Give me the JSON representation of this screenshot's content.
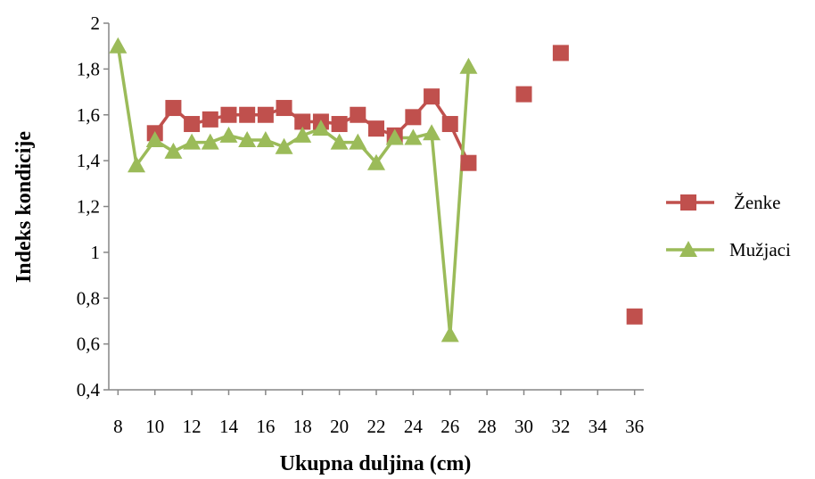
{
  "chart_data": {
    "type": "line",
    "xlabel": "Ukupna duljina (cm)",
    "ylabel": "Indeks kondicije",
    "ylim": [
      0.4,
      2
    ],
    "y_ticks": [
      "0,4",
      "0,6",
      "0,8",
      "1",
      "1,2",
      "1,4",
      "1,6",
      "1,8",
      "2"
    ],
    "y_tick_values": [
      0.4,
      0.6,
      0.8,
      1.0,
      1.2,
      1.4,
      1.6,
      1.8,
      2.0
    ],
    "x_ticks": [
      "8",
      "10",
      "12",
      "14",
      "16",
      "18",
      "20",
      "22",
      "24",
      "26",
      "28",
      "30",
      "32",
      "34",
      "36"
    ],
    "x_tick_values": [
      8,
      10,
      12,
      14,
      16,
      18,
      20,
      22,
      24,
      26,
      28,
      30,
      32,
      34,
      36
    ],
    "grid": false,
    "legend_position": "right",
    "series": [
      {
        "name": "Ženke",
        "color": "#c0504d",
        "marker": "square",
        "x": [
          10,
          11,
          12,
          13,
          14,
          15,
          16,
          17,
          18,
          19,
          20,
          21,
          22,
          23,
          24,
          25,
          26,
          27,
          30,
          32,
          36
        ],
        "y": [
          1.52,
          1.63,
          1.56,
          1.58,
          1.6,
          1.6,
          1.6,
          1.63,
          1.57,
          1.57,
          1.56,
          1.6,
          1.54,
          1.51,
          1.59,
          1.68,
          1.56,
          1.39,
          1.69,
          1.87,
          0.72
        ],
        "connected_until_x": 27
      },
      {
        "name": "Mužjaci",
        "color": "#9bbb59",
        "marker": "triangle",
        "x": [
          8,
          9,
          10,
          11,
          12,
          13,
          14,
          15,
          16,
          17,
          18,
          19,
          20,
          21,
          22,
          23,
          24,
          25,
          26,
          27
        ],
        "y": [
          1.9,
          1.38,
          1.49,
          1.44,
          1.48,
          1.48,
          1.51,
          1.49,
          1.49,
          1.46,
          1.51,
          1.54,
          1.48,
          1.48,
          1.39,
          1.5,
          1.5,
          1.52,
          0.64,
          1.81
        ],
        "connected_until_x": 27
      }
    ]
  }
}
